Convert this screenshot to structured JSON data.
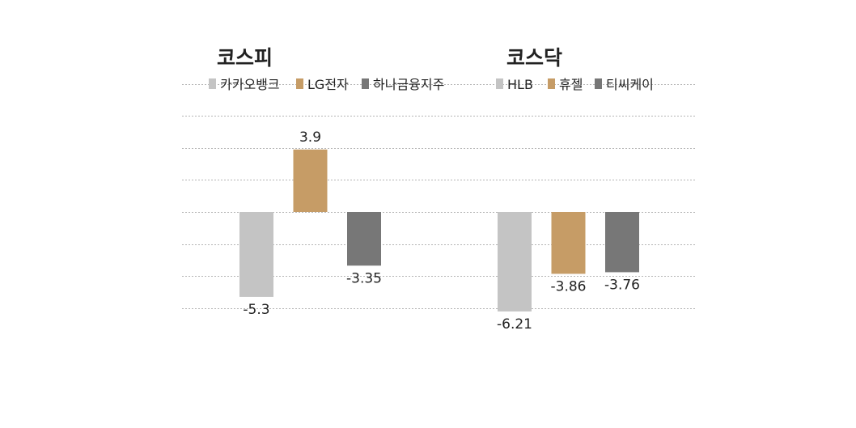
{
  "chart_data": {
    "type": "bar",
    "ylim": [
      -7,
      9
    ],
    "grid": true,
    "colors": [
      "#c4c4c4",
      "#c69c66",
      "#777777"
    ],
    "panels": [
      {
        "title": "코스피",
        "categories": [
          "카카오뱅크",
          "LG전자",
          "하나금융지주"
        ],
        "values": [
          -5.3,
          3.9,
          -3.35
        ],
        "labels": [
          "-5.3",
          "3.9",
          "-3.35"
        ]
      },
      {
        "title": "코스닥",
        "categories": [
          "HLB",
          "휴젤",
          "티씨케이"
        ],
        "values": [
          -6.21,
          -3.86,
          -3.76
        ],
        "labels": [
          "-6.21",
          "-3.86",
          "-3.76"
        ]
      }
    ]
  }
}
